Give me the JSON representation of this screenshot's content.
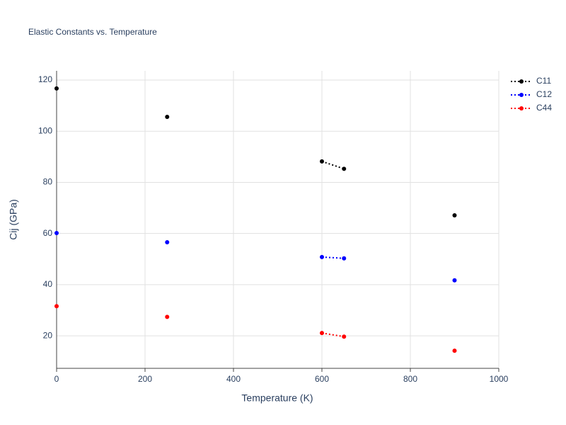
{
  "chart_data": {
    "type": "line",
    "title": "Elastic Constants vs. Temperature",
    "x_label": "Temperature (K)",
    "y_label": "Cij (GPa)",
    "x": [
      0,
      null,
      250,
      null,
      600,
      650,
      null,
      900
    ],
    "series": [
      {
        "name": "C11",
        "color": "#000000",
        "values": [
          116.7,
          null,
          105.6,
          null,
          88.2,
          85.3,
          null,
          67.1
        ]
      },
      {
        "name": "C12",
        "color": "#0000ff",
        "values": [
          60.2,
          null,
          56.6,
          null,
          50.8,
          50.3,
          null,
          41.7
        ]
      },
      {
        "name": "C44",
        "color": "#ff0000",
        "values": [
          31.6,
          null,
          27.4,
          null,
          21.1,
          19.7,
          null,
          14.2
        ]
      }
    ],
    "xlim": [
      0,
      1000
    ],
    "xticks": [
      0,
      200,
      400,
      600,
      800,
      1000
    ],
    "ylim": [
      7.3,
      123.6
    ],
    "yticks": [
      20,
      40,
      60,
      80,
      100,
      120
    ],
    "grid": true,
    "legend": "right"
  }
}
